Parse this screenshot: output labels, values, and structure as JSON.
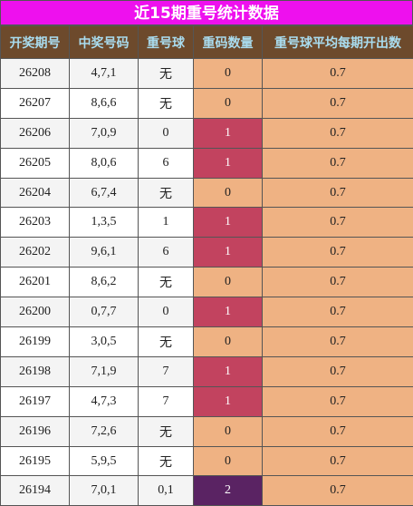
{
  "header": {
    "title": "近15期重号统计数据"
  },
  "table": {
    "columns": [
      "开奖期号",
      "中奖号码",
      "重号球",
      "重码数量",
      "重号球平均每期开出数"
    ],
    "rows": [
      [
        "26208",
        "4,7,1",
        "无",
        "0",
        "0.7"
      ],
      [
        "26207",
        "8,6,6",
        "无",
        "0",
        "0.7"
      ],
      [
        "26206",
        "7,0,9",
        "0",
        "1",
        "0.7"
      ],
      [
        "26205",
        "8,0,6",
        "6",
        "1",
        "0.7"
      ],
      [
        "26204",
        "6,7,4",
        "无",
        "0",
        "0.7"
      ],
      [
        "26203",
        "1,3,5",
        "1",
        "1",
        "0.7"
      ],
      [
        "26202",
        "9,6,1",
        "6",
        "1",
        "0.7"
      ],
      [
        "26201",
        "8,6,2",
        "无",
        "0",
        "0.7"
      ],
      [
        "26200",
        "0,7,7",
        "0",
        "1",
        "0.7"
      ],
      [
        "26199",
        "3,0,5",
        "无",
        "0",
        "0.7"
      ],
      [
        "26198",
        "7,1,9",
        "7",
        "1",
        "0.7"
      ],
      [
        "26197",
        "4,7,3",
        "7",
        "1",
        "0.7"
      ],
      [
        "26196",
        "7,2,6",
        "无",
        "0",
        "0.7"
      ],
      [
        "26195",
        "5,9,5",
        "无",
        "0",
        "0.7"
      ],
      [
        "26194",
        "7,0,1",
        "0,1",
        "2",
        "0.7"
      ]
    ],
    "repeat_count_colors": [
      "#efb283",
      "#c2435f",
      "#5a2363"
    ],
    "average_color": "#efb283"
  }
}
